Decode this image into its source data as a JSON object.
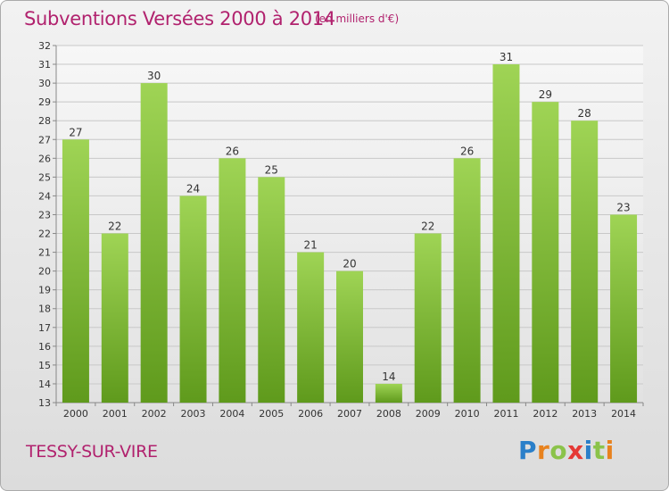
{
  "header": {
    "title": "Subventions Versées 2000 à 2014",
    "subtitle": "(en milliers d'€)"
  },
  "footer": {
    "commune": "TESSY-SUR-VIRE",
    "logo_text": "Proxiti",
    "logo_letters": [
      {
        "ch": "P",
        "color": "#2a7fc9"
      },
      {
        "ch": "r",
        "color": "#e8821e"
      },
      {
        "ch": "o",
        "color": "#8bc34a"
      },
      {
        "ch": "x",
        "color": "#e53935"
      },
      {
        "ch": "i",
        "color": "#2a7fc9"
      },
      {
        "ch": "t",
        "color": "#8bc34a"
      },
      {
        "ch": "i",
        "color": "#e8821e"
      }
    ]
  },
  "colors": {
    "accent": "#b1226e",
    "bar_light": "#9fd455",
    "bar_dark": "#5f9a1c"
  },
  "chart_data": {
    "type": "bar",
    "title": "Subventions Versées 2000 à 2014",
    "subtitle": "(en milliers d'€)",
    "categories": [
      "2000",
      "2001",
      "2002",
      "2003",
      "2004",
      "2005",
      "2006",
      "2007",
      "2008",
      "2009",
      "2010",
      "2011",
      "2012",
      "2013",
      "2014"
    ],
    "values": [
      27,
      22,
      30,
      24,
      26,
      25,
      21,
      20,
      14,
      22,
      26,
      31,
      29,
      28,
      23
    ],
    "ylim": [
      13,
      32
    ],
    "yticks": [
      13,
      14,
      15,
      16,
      17,
      18,
      19,
      20,
      21,
      22,
      23,
      24,
      25,
      26,
      27,
      28,
      29,
      30,
      31,
      32
    ],
    "grid": true,
    "xlabel": "",
    "ylabel": ""
  }
}
